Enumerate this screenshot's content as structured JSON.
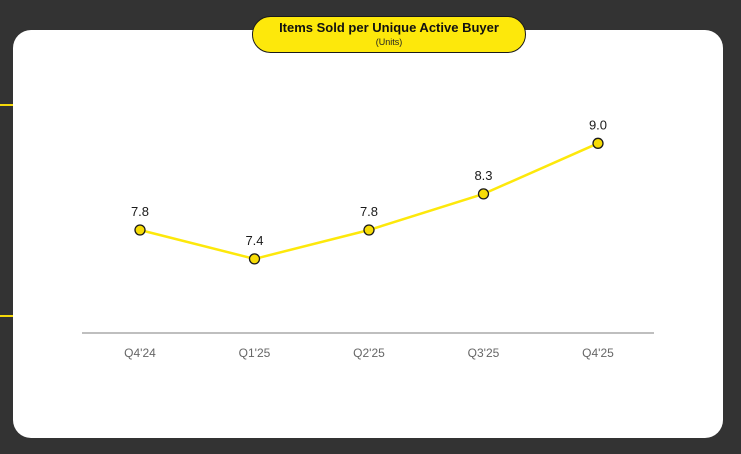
{
  "colors": {
    "background": "#333333",
    "card": "#ffffff",
    "accent": "#fde80b",
    "line": "#fde80b",
    "marker_fill": "#f7dc06",
    "marker_stroke": "#1a1a1a",
    "axis": "#999999"
  },
  "chart_data": {
    "type": "line",
    "title": "Items Sold per Unique Active Buyer",
    "subtitle": "(Units)",
    "xlabel": "",
    "ylabel": "",
    "categories": [
      "Q4'24",
      "Q1'25",
      "Q2'25",
      "Q3'25",
      "Q4'25"
    ],
    "series": [
      {
        "name": "Items Sold per Unique Active Buyer",
        "values": [
          7.8,
          7.4,
          7.8,
          8.3,
          9.0
        ],
        "labels": [
          "7.8",
          "7.4",
          "7.8",
          "8.3",
          "9.0"
        ]
      }
    ],
    "ylim": [
      6.0,
      9.6
    ],
    "grid": false,
    "legend": "none"
  }
}
